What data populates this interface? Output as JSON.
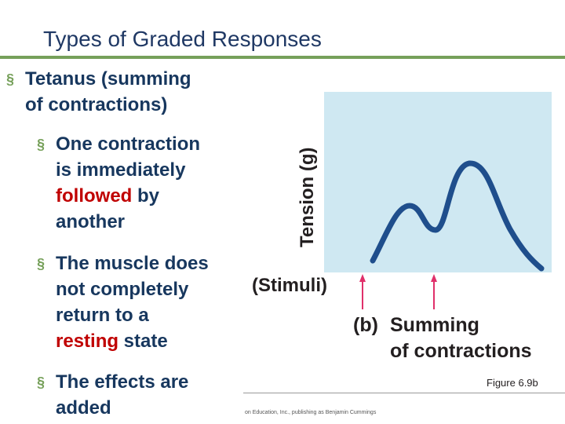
{
  "slide": {
    "title": "Types of Graded Responses",
    "bullets": {
      "main": {
        "line1": "Tetanus (summing",
        "line2": "of contractions)"
      },
      "sub1": {
        "line1": "One contraction",
        "line2": "is immediately",
        "line3_red": "followed",
        "line3_rest": " by",
        "line4": "another"
      },
      "sub2": {
        "line1": "The muscle does",
        "line2": "not completely",
        "line3": "return to a",
        "line4_red": "resting",
        "line4_rest": " state"
      },
      "sub3": {
        "line1": "The effects are",
        "line2": "added"
      }
    },
    "bullet_glyph": "§"
  },
  "figure": {
    "ylabel": "Tension (g)",
    "stimuli_label": "(Stimuli)",
    "caption_letter": "(b)",
    "caption_line1": "Summing",
    "caption_line2": "of contractions",
    "figure_number": "Figure 6.9b",
    "copyright": "on Education, Inc., publishing as Benjamin Cummings"
  },
  "colors": {
    "accent_green": "#76a05a",
    "title_blue": "#1f3864",
    "emphasis_red": "#c00000",
    "curve_blue": "#1f4e8c",
    "figure_bg": "#cfe8f2",
    "arrow_pink": "#e0306a"
  }
}
